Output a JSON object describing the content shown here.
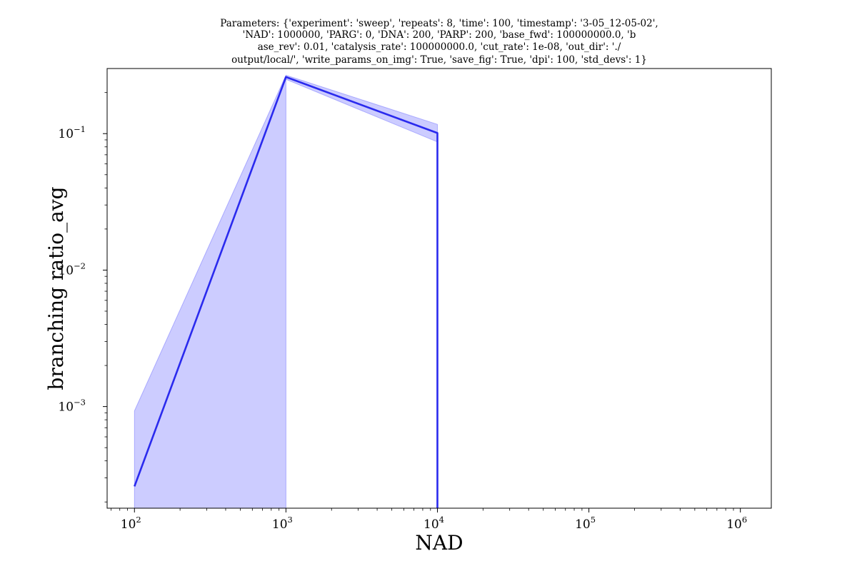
{
  "chart_data": {
    "type": "line",
    "title_lines": [
      "Parameters: {'experiment': 'sweep', 'repeats': 8, 'time': 100, 'timestamp': '3-05_12-05-02',",
      "'NAD': 1000000, 'PARG': 0, 'DNA': 200, 'PARP': 200, 'base_fwd': 100000000.0, 'b",
      "ase_rev': 0.01, 'catalysis_rate': 100000000.0, 'cut_rate': 1e-08, 'out_dir': './",
      "output/local/', 'write_params_on_img': True, 'save_fig': True, 'dpi': 100, 'std_devs': 1}"
    ],
    "xlabel": "NAD",
    "ylabel": "branching ratio_avg",
    "xscale": "log",
    "yscale": "log",
    "xlim": [
      66,
      1600000
    ],
    "ylim": [
      0.00018,
      0.3
    ],
    "x_ticks": [
      {
        "value": 100,
        "base": "10",
        "exp": "2"
      },
      {
        "value": 1000,
        "base": "10",
        "exp": "3"
      },
      {
        "value": 10000,
        "base": "10",
        "exp": "4"
      },
      {
        "value": 100000,
        "base": "10",
        "exp": "5"
      },
      {
        "value": 1000000,
        "base": "10",
        "exp": "6"
      }
    ],
    "y_ticks": [
      {
        "value": 0.001,
        "base": "10",
        "exp": "−3"
      },
      {
        "value": 0.01,
        "base": "10",
        "exp": "−2"
      },
      {
        "value": 0.1,
        "base": "10",
        "exp": "−1"
      }
    ],
    "grid": false,
    "series": [
      {
        "color": "#2a2aee",
        "band_color": "#0000ff",
        "points": [
          {
            "x": 100,
            "y": 0.00026
          },
          {
            "x": 1000,
            "y": 0.26
          },
          {
            "x": 10000,
            "y": 0.101
          },
          {
            "x": 10000,
            "y": 0.00018
          }
        ],
        "band": [
          {
            "x": 100,
            "upper": 0.00093,
            "lower": 0.00018
          },
          {
            "x": 1000,
            "upper": 0.268,
            "lower": 0.00018
          },
          {
            "x": 1000,
            "upper": 0.268,
            "lower": 0.25
          },
          {
            "x": 10000,
            "upper": 0.117,
            "lower": 0.087
          },
          {
            "x": 10000,
            "upper": 0.117,
            "lower": 0.00018
          }
        ]
      }
    ]
  }
}
